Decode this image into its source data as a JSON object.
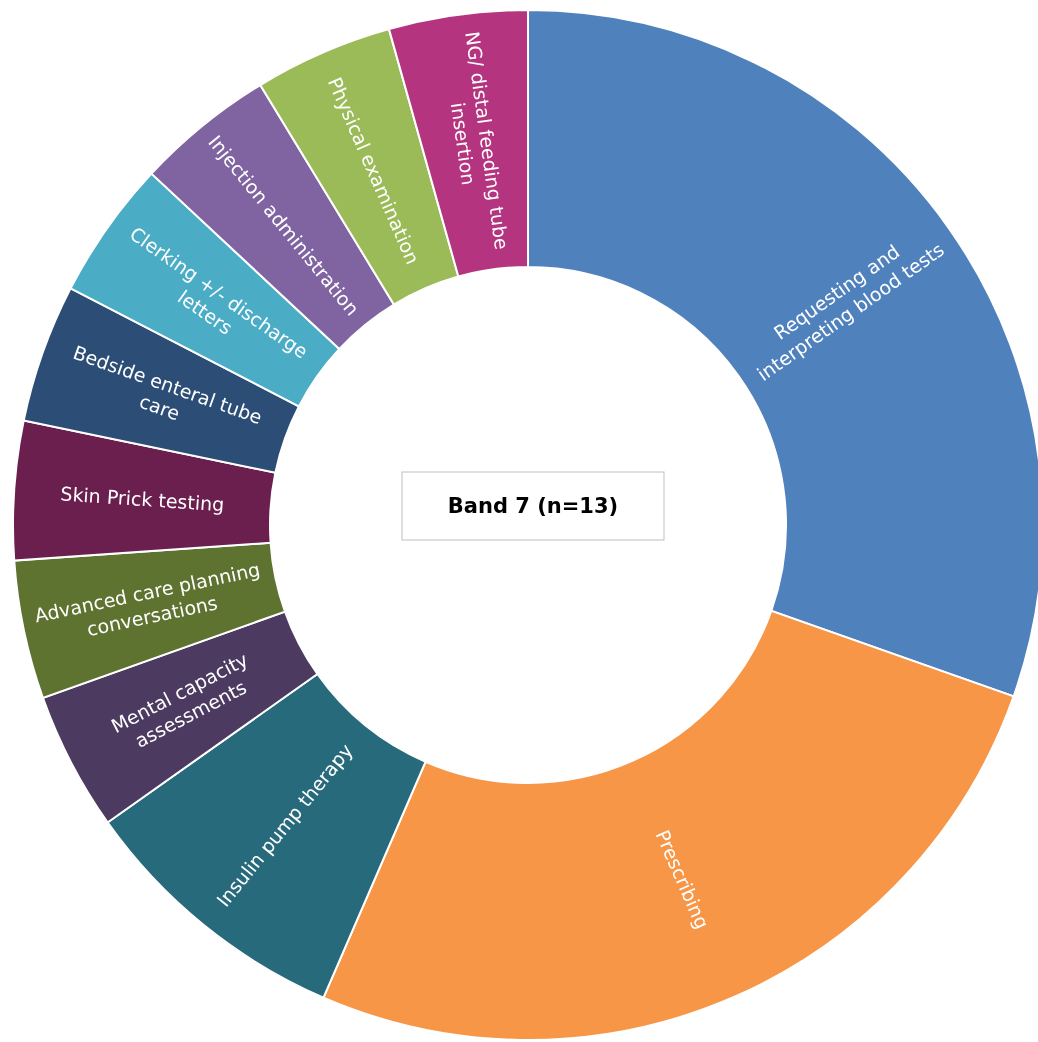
{
  "chart_data": {
    "type": "donut",
    "title": "Band 7 (n=13)",
    "categories": [
      "Requesting and interpreting blood tests",
      "Prescribing",
      "Insulin pump therapy",
      "Mental capacity assessments",
      "Advanced care planning conversations",
      "Skin Prick testing",
      "Bedside enteral tube care",
      "Clerking +/- discharge letters",
      "Injection administration",
      "Physical examination",
      "NG/ distal feeding tube insertion"
    ],
    "values": [
      30.4,
      26.1,
      8.7,
      4.35,
      4.35,
      4.35,
      4.35,
      4.35,
      4.35,
      4.35,
      4.35
    ],
    "colors": [
      "#4f81bd",
      "#f79646",
      "#276a7b",
      "#4d3a60",
      "#5e7330",
      "#6b1f4e",
      "#2c4d75",
      "#4bacc6",
      "#8064a2",
      "#9bbb59",
      "#b5347f"
    ]
  }
}
